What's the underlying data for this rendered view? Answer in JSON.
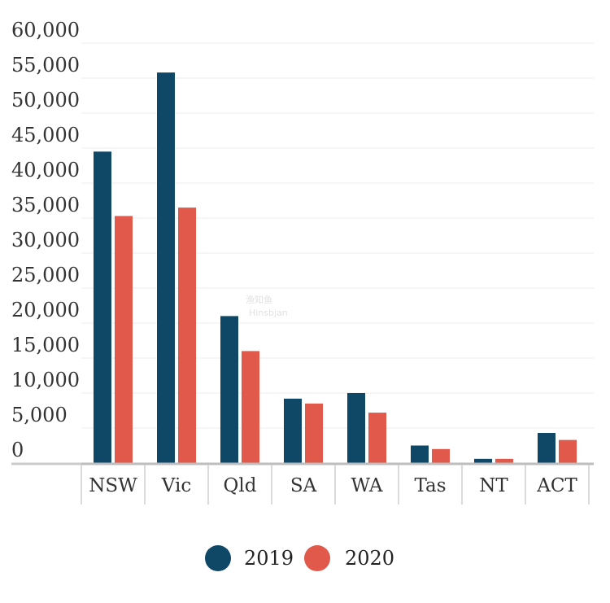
{
  "chart_data": {
    "type": "bar",
    "title": "",
    "xlabel": "",
    "ylabel": "",
    "categories": [
      "NSW",
      "Vic",
      "Qld",
      "SA",
      "WA",
      "Tas",
      "NT",
      "ACT"
    ],
    "series": [
      {
        "name": "2019",
        "color": "#0f4766",
        "values": [
          44500,
          55800,
          21000,
          9200,
          10000,
          2500,
          600,
          4300
        ]
      },
      {
        "name": "2020",
        "color": "#e0594a",
        "values": [
          35300,
          36500,
          16000,
          8500,
          7200,
          2000,
          600,
          3300
        ]
      }
    ],
    "ylim": [
      0,
      60000
    ],
    "yticks": [
      "0",
      "5,000",
      "10,000",
      "15,000",
      "20,000",
      "25,000",
      "30,000",
      "35,000",
      "40,000",
      "45,000",
      "50,000",
      "55,000",
      "60,000"
    ],
    "grid": true,
    "legend_position": "bottom"
  },
  "watermark": {
    "line1": "渔知鱼",
    "line2": "Hinsbjan"
  }
}
